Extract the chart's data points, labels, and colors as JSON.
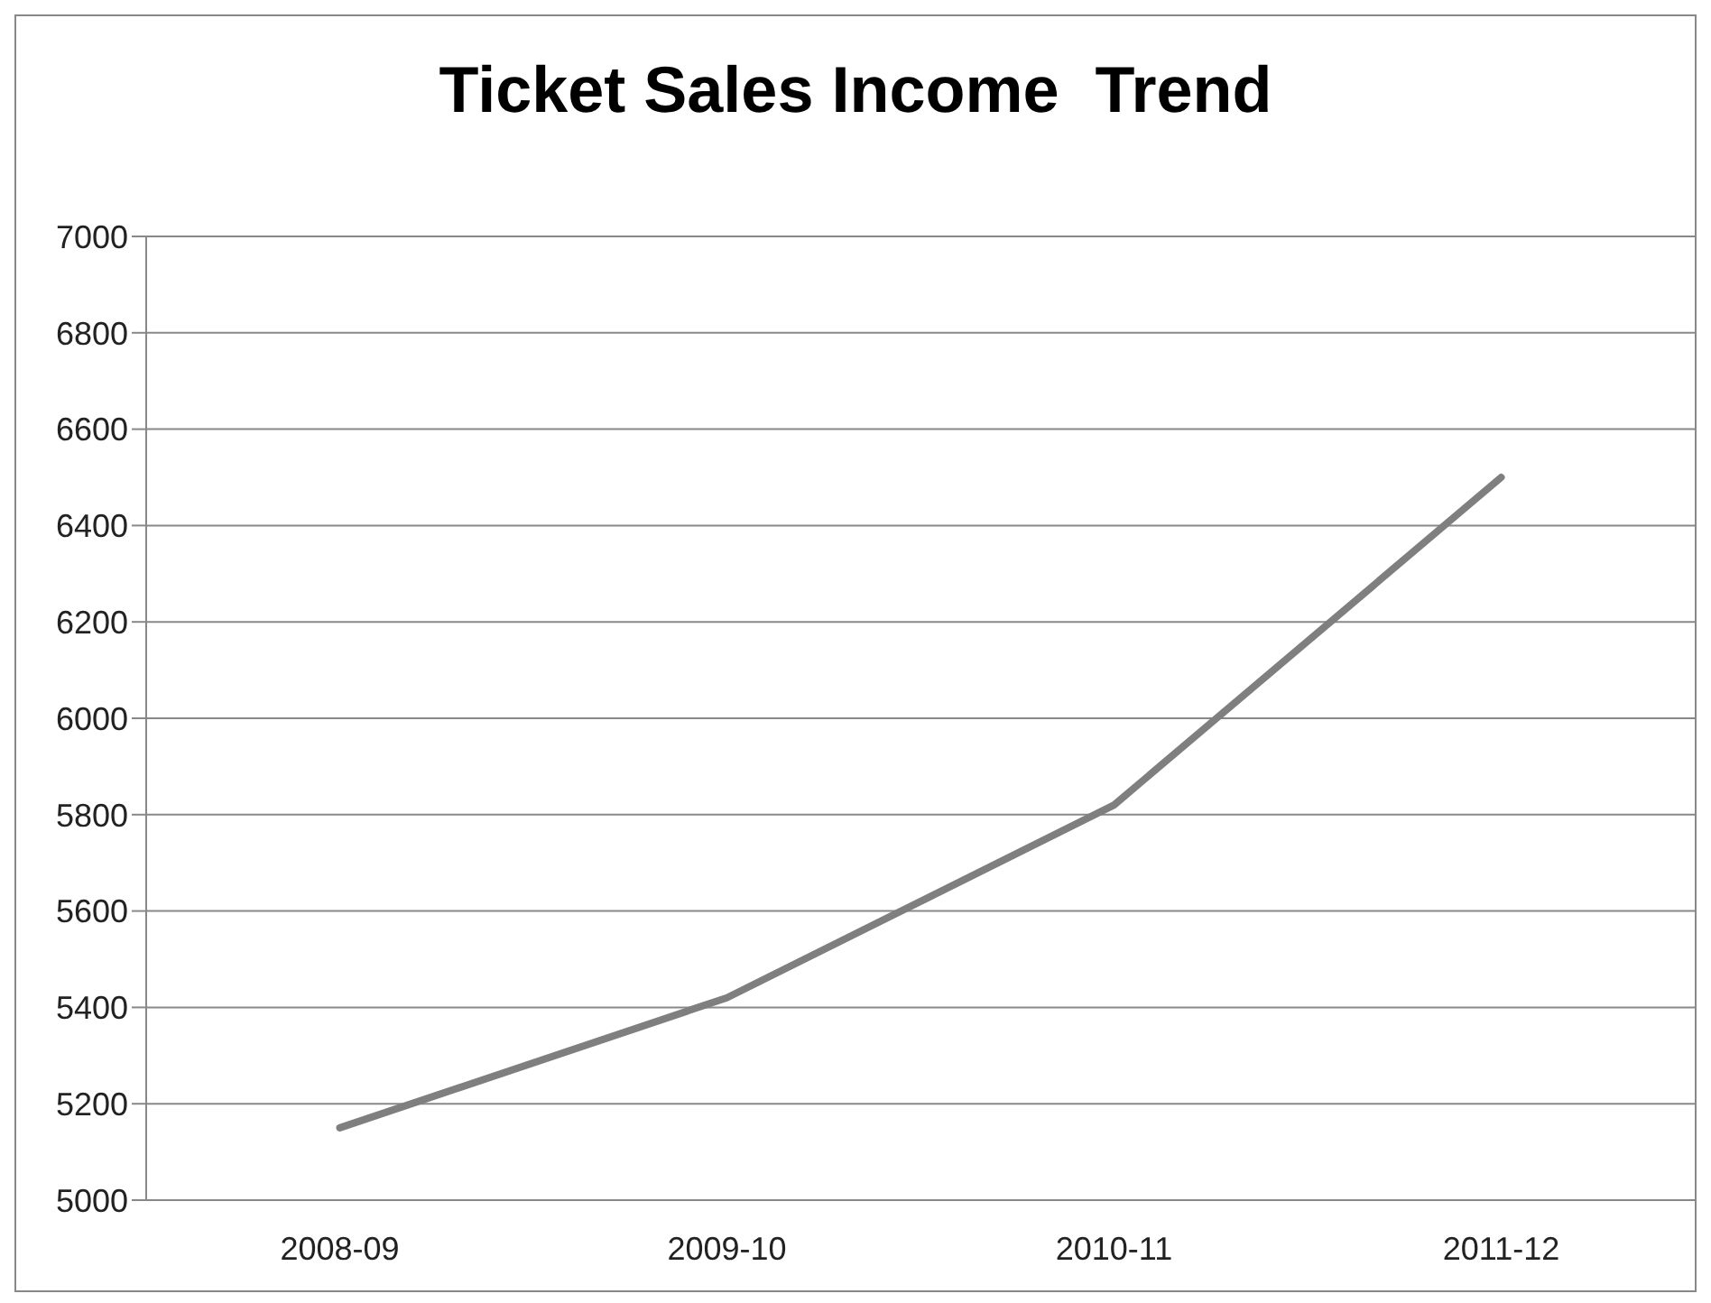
{
  "chart_data": {
    "type": "line",
    "title": "Ticket Sales Income  Trend",
    "categories": [
      "2008-09",
      "2009-10",
      "2010-11",
      "2011-12"
    ],
    "series": [
      {
        "color": "#7f7f7f",
        "values": [
          5150,
          5420,
          5820,
          6500
        ]
      }
    ],
    "ylim": [
      5000,
      7000
    ],
    "yticks": [
      5000,
      5200,
      5400,
      5600,
      5800,
      6000,
      6200,
      6400,
      6600,
      6800,
      7000
    ],
    "grid": "y",
    "legend": false,
    "marker": "none",
    "line_style": "solid"
  }
}
